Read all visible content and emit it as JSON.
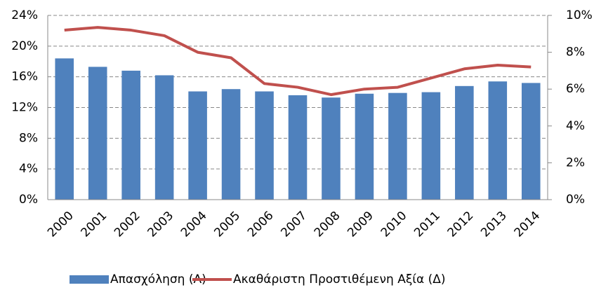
{
  "chart_data": {
    "type": "bar_line",
    "categories": [
      "2000",
      "2001",
      "2002",
      "2003",
      "2004",
      "2005",
      "2006",
      "2007",
      "2008",
      "2009",
      "2010",
      "2011",
      "2012",
      "2013",
      "2014"
    ],
    "series": [
      {
        "name": "Απασχόληση (Α)",
        "color": "#4f81bd",
        "type": "bar",
        "values": [
          18.4,
          17.3,
          16.8,
          16.2,
          14.1,
          14.4,
          14.1,
          13.6,
          13.3,
          13.8,
          13.9,
          14.0,
          14.8,
          15.4,
          15.2
        ]
      },
      {
        "name": "Ακαθάριστη Προστιθέμενη Αξία (Δ)",
        "color": "#c0504d",
        "type": "line",
        "axis": "y2",
        "values": [
          9.2,
          9.35,
          9.2,
          8.9,
          8.0,
          7.7,
          6.3,
          6.1,
          5.7,
          6.0,
          6.1,
          6.6,
          7.1,
          7.3,
          7.2
        ]
      }
    ],
    "ylim": [
      0,
      24
    ],
    "yticks": [
      {
        "value": 0,
        "label": "0%"
      },
      {
        "value": 4,
        "label": "4%"
      },
      {
        "value": 8,
        "label": "8%"
      },
      {
        "value": 12,
        "label": "12%"
      },
      {
        "value": 16,
        "label": "16%"
      },
      {
        "value": 20,
        "label": "20%"
      },
      {
        "value": 24,
        "label": "24%"
      }
    ],
    "y2lim": [
      0,
      10
    ],
    "y2ticks": [
      {
        "value": 0,
        "label": "0%"
      },
      {
        "value": 2,
        "label": "2%"
      },
      {
        "value": 4,
        "label": "4%"
      },
      {
        "value": 6,
        "label": "6%"
      },
      {
        "value": 8,
        "label": "8%"
      },
      {
        "value": 10,
        "label": "10%"
      }
    ],
    "grid": true,
    "legend": "bottom"
  }
}
